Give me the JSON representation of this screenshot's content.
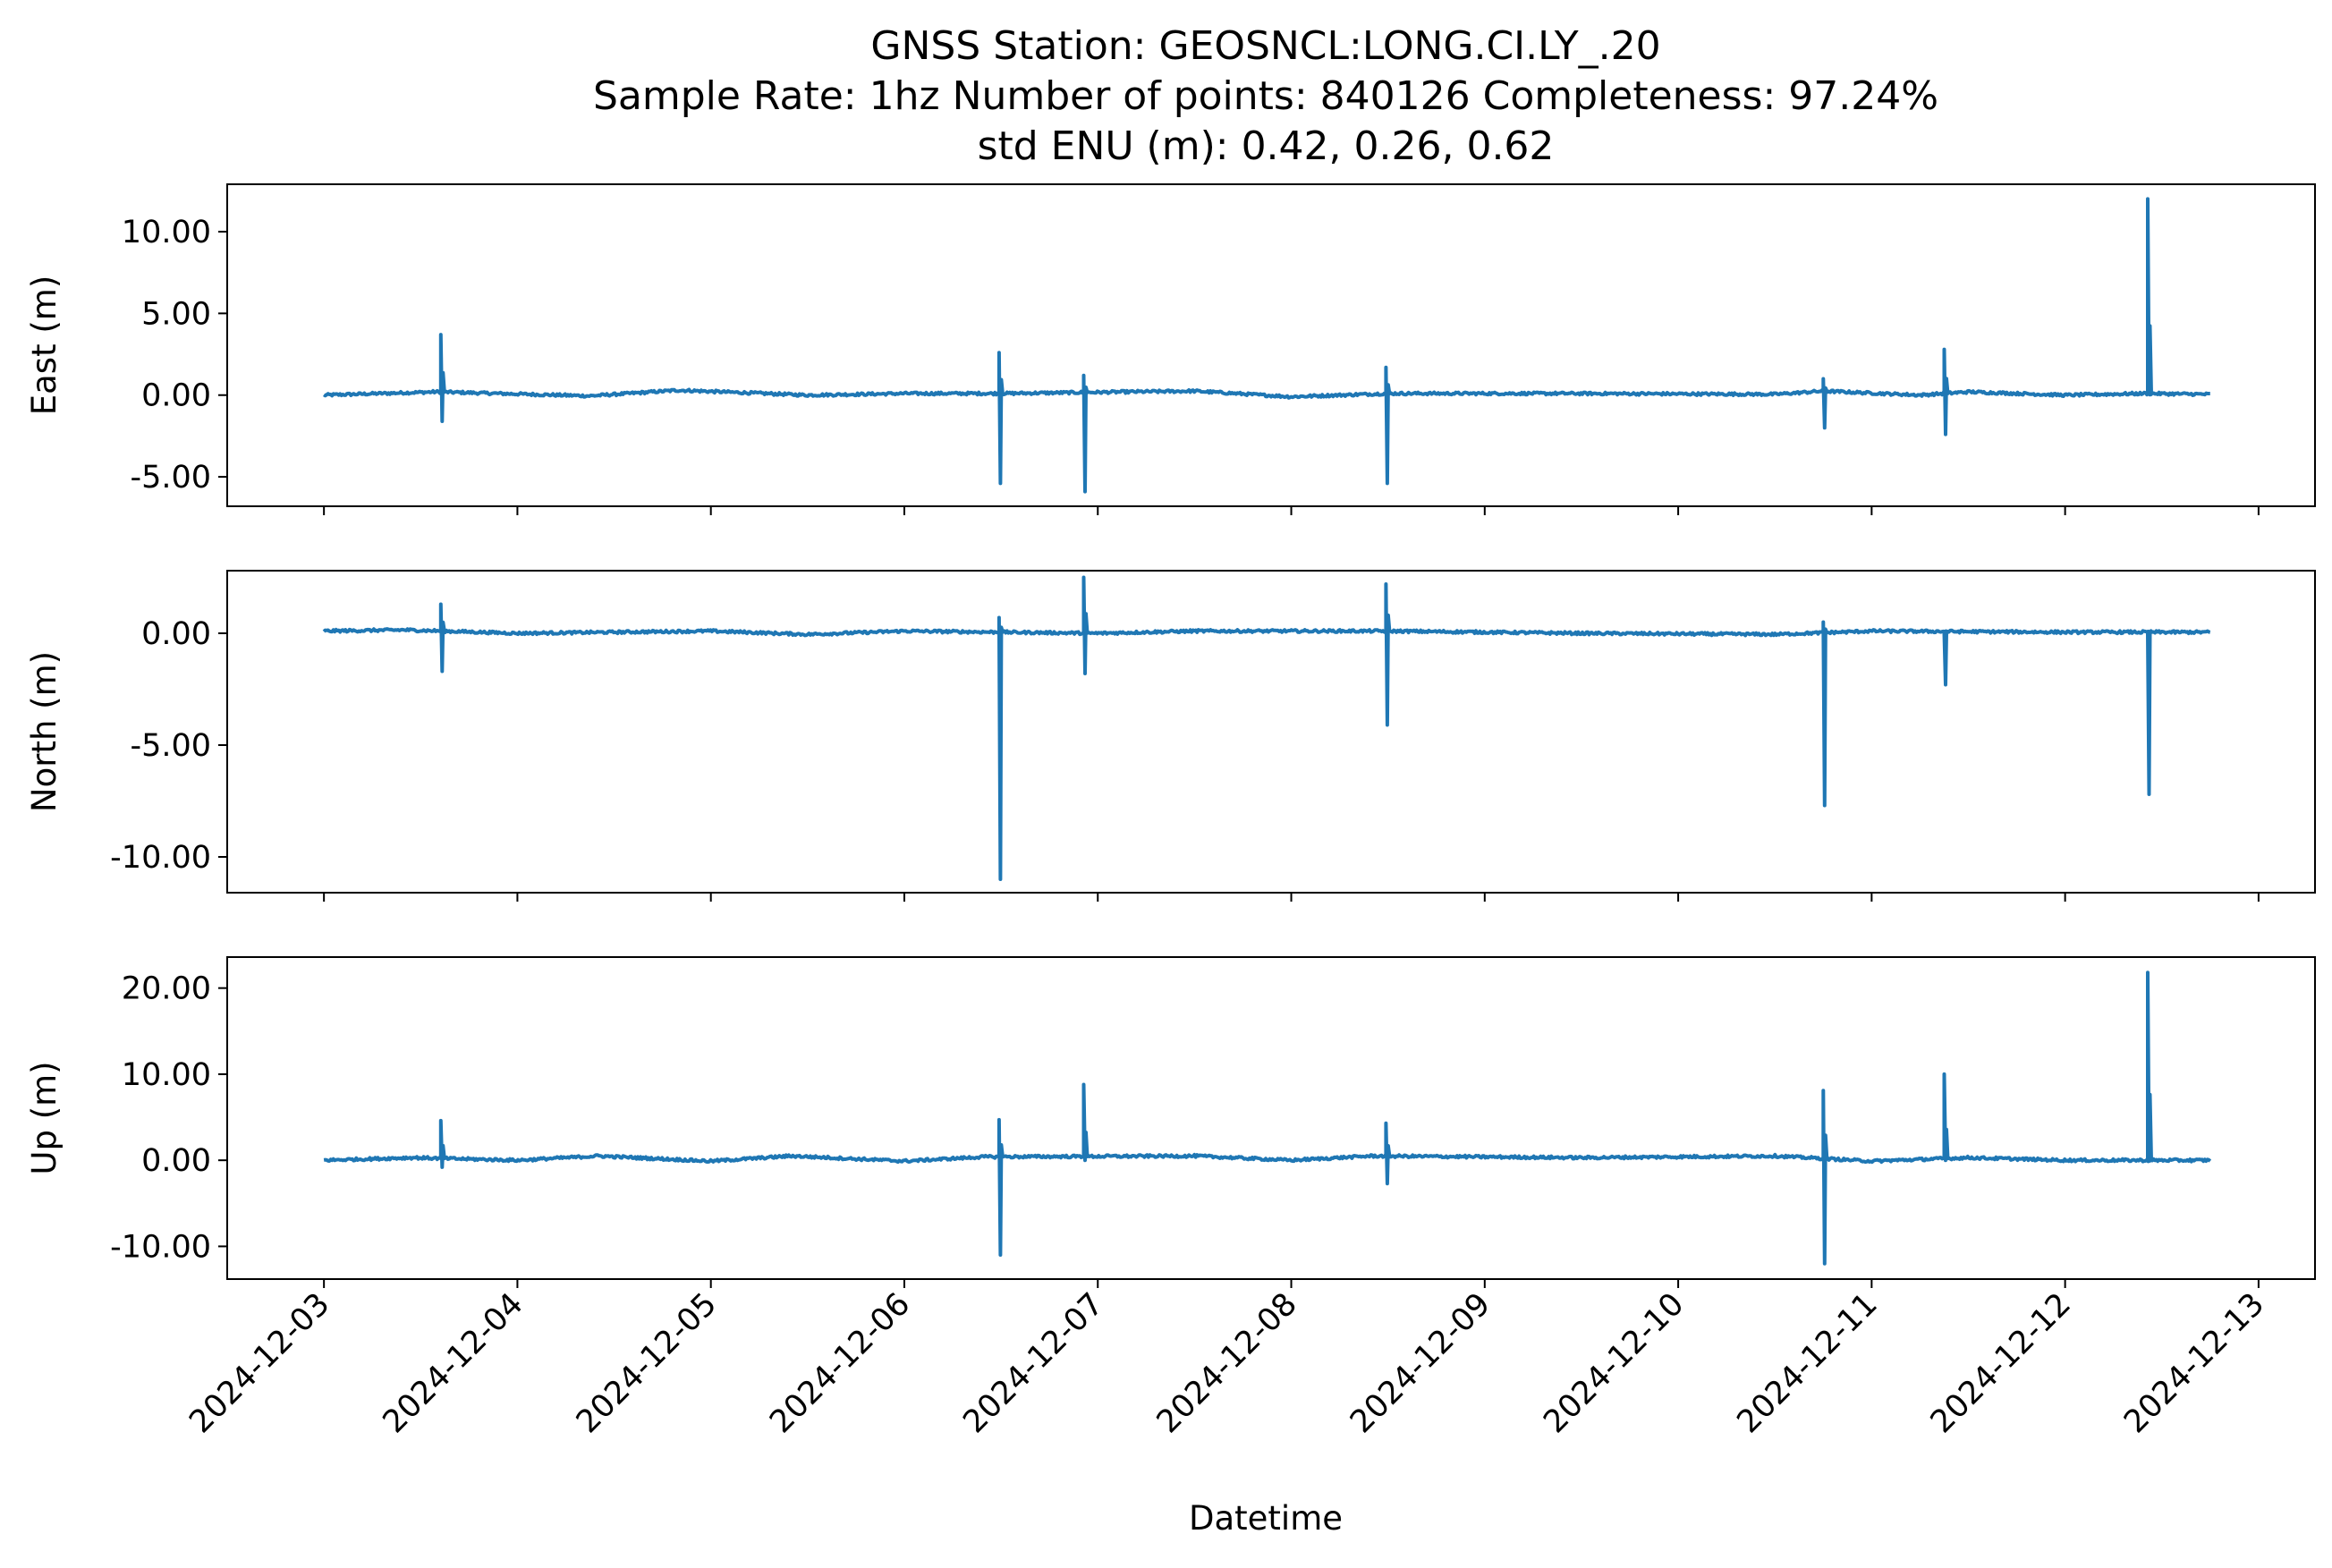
{
  "title_lines": [
    "GNSS Station: GEOSNCL:LONG.CI.LY_.20",
    "Sample Rate: 1hz   Number of points: 840126    Completeness:  97.24%",
    "std ENU (m):  0.42, 0.26, 0.62"
  ],
  "chart_data": {
    "type": "line",
    "line_color": "#1f77b4",
    "xlabel": "Datetime",
    "x_ticks": [
      "2024-12-03",
      "2024-12-04",
      "2024-12-05",
      "2024-12-06",
      "2024-12-07",
      "2024-12-08",
      "2024-12-09",
      "2024-12-10",
      "2024-12-11",
      "2024-12-12",
      "2024-12-13"
    ],
    "xlim": [
      "2024-12-02 12:00",
      "2024-12-13 07:00"
    ],
    "data_range": [
      "2024-12-03 00:00",
      "2024-12-12 18:00"
    ],
    "panels": [
      {
        "ylabel": "East (m)",
        "ylim": [
          -6.8,
          12.9
        ],
        "yticks": [
          "-5.00",
          "0.00",
          "5.00",
          "10.00"
        ],
        "ytick_values": [
          -5,
          0,
          5,
          10
        ],
        "baseline": [
          {
            "t": "2024-12-03 00:00",
            "v": 0.0
          },
          {
            "t": "2024-12-03 14:00",
            "v": 0.2
          },
          {
            "t": "2024-12-04 09:00",
            "v": -0.05
          },
          {
            "t": "2024-12-04 20:00",
            "v": 0.3
          },
          {
            "t": "2024-12-05 12:00",
            "v": 0.0
          },
          {
            "t": "2024-12-06 00:00",
            "v": 0.1
          },
          {
            "t": "2024-12-06 12:00",
            "v": 0.1
          },
          {
            "t": "2024-12-07 12:00",
            "v": 0.25
          },
          {
            "t": "2024-12-08 00:00",
            "v": -0.1
          },
          {
            "t": "2024-12-08 12:00",
            "v": 0.1
          },
          {
            "t": "2024-12-09 12:00",
            "v": 0.1
          },
          {
            "t": "2024-12-10 12:00",
            "v": 0.05
          },
          {
            "t": "2024-12-10 18:00",
            "v": 0.25
          },
          {
            "t": "2024-12-11 06:00",
            "v": 0.0
          },
          {
            "t": "2024-12-11 12:00",
            "v": 0.2
          },
          {
            "t": "2024-12-12 00:00",
            "v": 0.0
          },
          {
            "t": "2024-12-12 10:00",
            "v": 0.1
          },
          {
            "t": "2024-12-12 18:00",
            "v": 0.05
          }
        ],
        "spikes": [
          {
            "t": "2024-12-03 14:30",
            "max": 3.7,
            "min": -1.6
          },
          {
            "t": "2024-12-06 11:45",
            "max": 2.6,
            "min": -5.4
          },
          {
            "t": "2024-12-06 22:15",
            "max": 1.2,
            "min": -5.9
          },
          {
            "t": "2024-12-08 11:45",
            "max": 1.7,
            "min": -5.4
          },
          {
            "t": "2024-12-10 18:00",
            "max": 1.0,
            "min": -2.0
          },
          {
            "t": "2024-12-11 09:00",
            "max": 2.8,
            "min": -2.4
          },
          {
            "t": "2024-12-12 10:15",
            "max": 12.0,
            "min": 0.2
          }
        ]
      },
      {
        "ylabel": "North (m)",
        "ylim": [
          -11.6,
          2.8
        ],
        "yticks": [
          "-10.00",
          "-5.00",
          "0.00"
        ],
        "ytick_values": [
          -10,
          -5,
          0
        ],
        "baseline": [
          {
            "t": "2024-12-03 00:00",
            "v": 0.1
          },
          {
            "t": "2024-12-03 10:00",
            "v": 0.15
          },
          {
            "t": "2024-12-04 00:00",
            "v": 0.0
          },
          {
            "t": "2024-12-05 00:00",
            "v": 0.1
          },
          {
            "t": "2024-12-05 12:00",
            "v": -0.05
          },
          {
            "t": "2024-12-06 00:00",
            "v": 0.1
          },
          {
            "t": "2024-12-07 00:00",
            "v": 0.0
          },
          {
            "t": "2024-12-07 12:00",
            "v": 0.1
          },
          {
            "t": "2024-12-08 12:00",
            "v": 0.1
          },
          {
            "t": "2024-12-09 12:00",
            "v": 0.0
          },
          {
            "t": "2024-12-10 12:00",
            "v": -0.05
          },
          {
            "t": "2024-12-11 00:00",
            "v": 0.1
          },
          {
            "t": "2024-12-12 00:00",
            "v": 0.05
          },
          {
            "t": "2024-12-12 18:00",
            "v": 0.05
          }
        ],
        "spikes": [
          {
            "t": "2024-12-03 14:30",
            "max": 1.3,
            "min": -1.7
          },
          {
            "t": "2024-12-06 11:45",
            "max": 0.7,
            "min": -11.0
          },
          {
            "t": "2024-12-06 22:15",
            "max": 2.5,
            "min": -1.8
          },
          {
            "t": "2024-12-08 11:45",
            "max": 2.2,
            "min": -4.1
          },
          {
            "t": "2024-12-10 18:00",
            "max": 0.5,
            "min": -7.7
          },
          {
            "t": "2024-12-11 09:00",
            "max": 0.0,
            "min": -2.3
          },
          {
            "t": "2024-12-12 10:15",
            "max": 0.0,
            "min": -7.2
          }
        ]
      },
      {
        "ylabel": "Up (m)",
        "ylim": [
          -13.8,
          23.6
        ],
        "yticks": [
          "-10.00",
          "0.00",
          "10.00",
          "20.00"
        ],
        "ytick_values": [
          -10,
          0,
          10,
          20
        ],
        "baseline": [
          {
            "t": "2024-12-03 00:00",
            "v": 0.0
          },
          {
            "t": "2024-12-03 11:00",
            "v": 0.3
          },
          {
            "t": "2024-12-04 00:00",
            "v": 0.0
          },
          {
            "t": "2024-12-04 10:00",
            "v": 0.5
          },
          {
            "t": "2024-12-05 00:00",
            "v": -0.1
          },
          {
            "t": "2024-12-05 10:00",
            "v": 0.5
          },
          {
            "t": "2024-12-06 00:00",
            "v": -0.1
          },
          {
            "t": "2024-12-06 10:00",
            "v": 0.4
          },
          {
            "t": "2024-12-07 12:00",
            "v": 0.5
          },
          {
            "t": "2024-12-08 00:00",
            "v": 0.0
          },
          {
            "t": "2024-12-08 10:00",
            "v": 0.5
          },
          {
            "t": "2024-12-09 12:00",
            "v": 0.3
          },
          {
            "t": "2024-12-10 12:00",
            "v": 0.5
          },
          {
            "t": "2024-12-11 00:00",
            "v": -0.1
          },
          {
            "t": "2024-12-11 12:00",
            "v": 0.3
          },
          {
            "t": "2024-12-12 00:00",
            "v": 0.0
          },
          {
            "t": "2024-12-12 18:00",
            "v": 0.0
          }
        ],
        "spikes": [
          {
            "t": "2024-12-03 14:30",
            "max": 4.6,
            "min": -0.8
          },
          {
            "t": "2024-12-06 11:45",
            "max": 4.7,
            "min": -11.0
          },
          {
            "t": "2024-12-06 22:15",
            "max": 8.8,
            "min": 0.0
          },
          {
            "t": "2024-12-08 11:45",
            "max": 4.3,
            "min": -2.7
          },
          {
            "t": "2024-12-10 18:00",
            "max": 8.1,
            "min": -12.0
          },
          {
            "t": "2024-12-11 09:00",
            "max": 10.0,
            "min": 0.0
          },
          {
            "t": "2024-12-12 10:15",
            "max": 21.8,
            "min": 0.5
          }
        ]
      }
    ]
  }
}
